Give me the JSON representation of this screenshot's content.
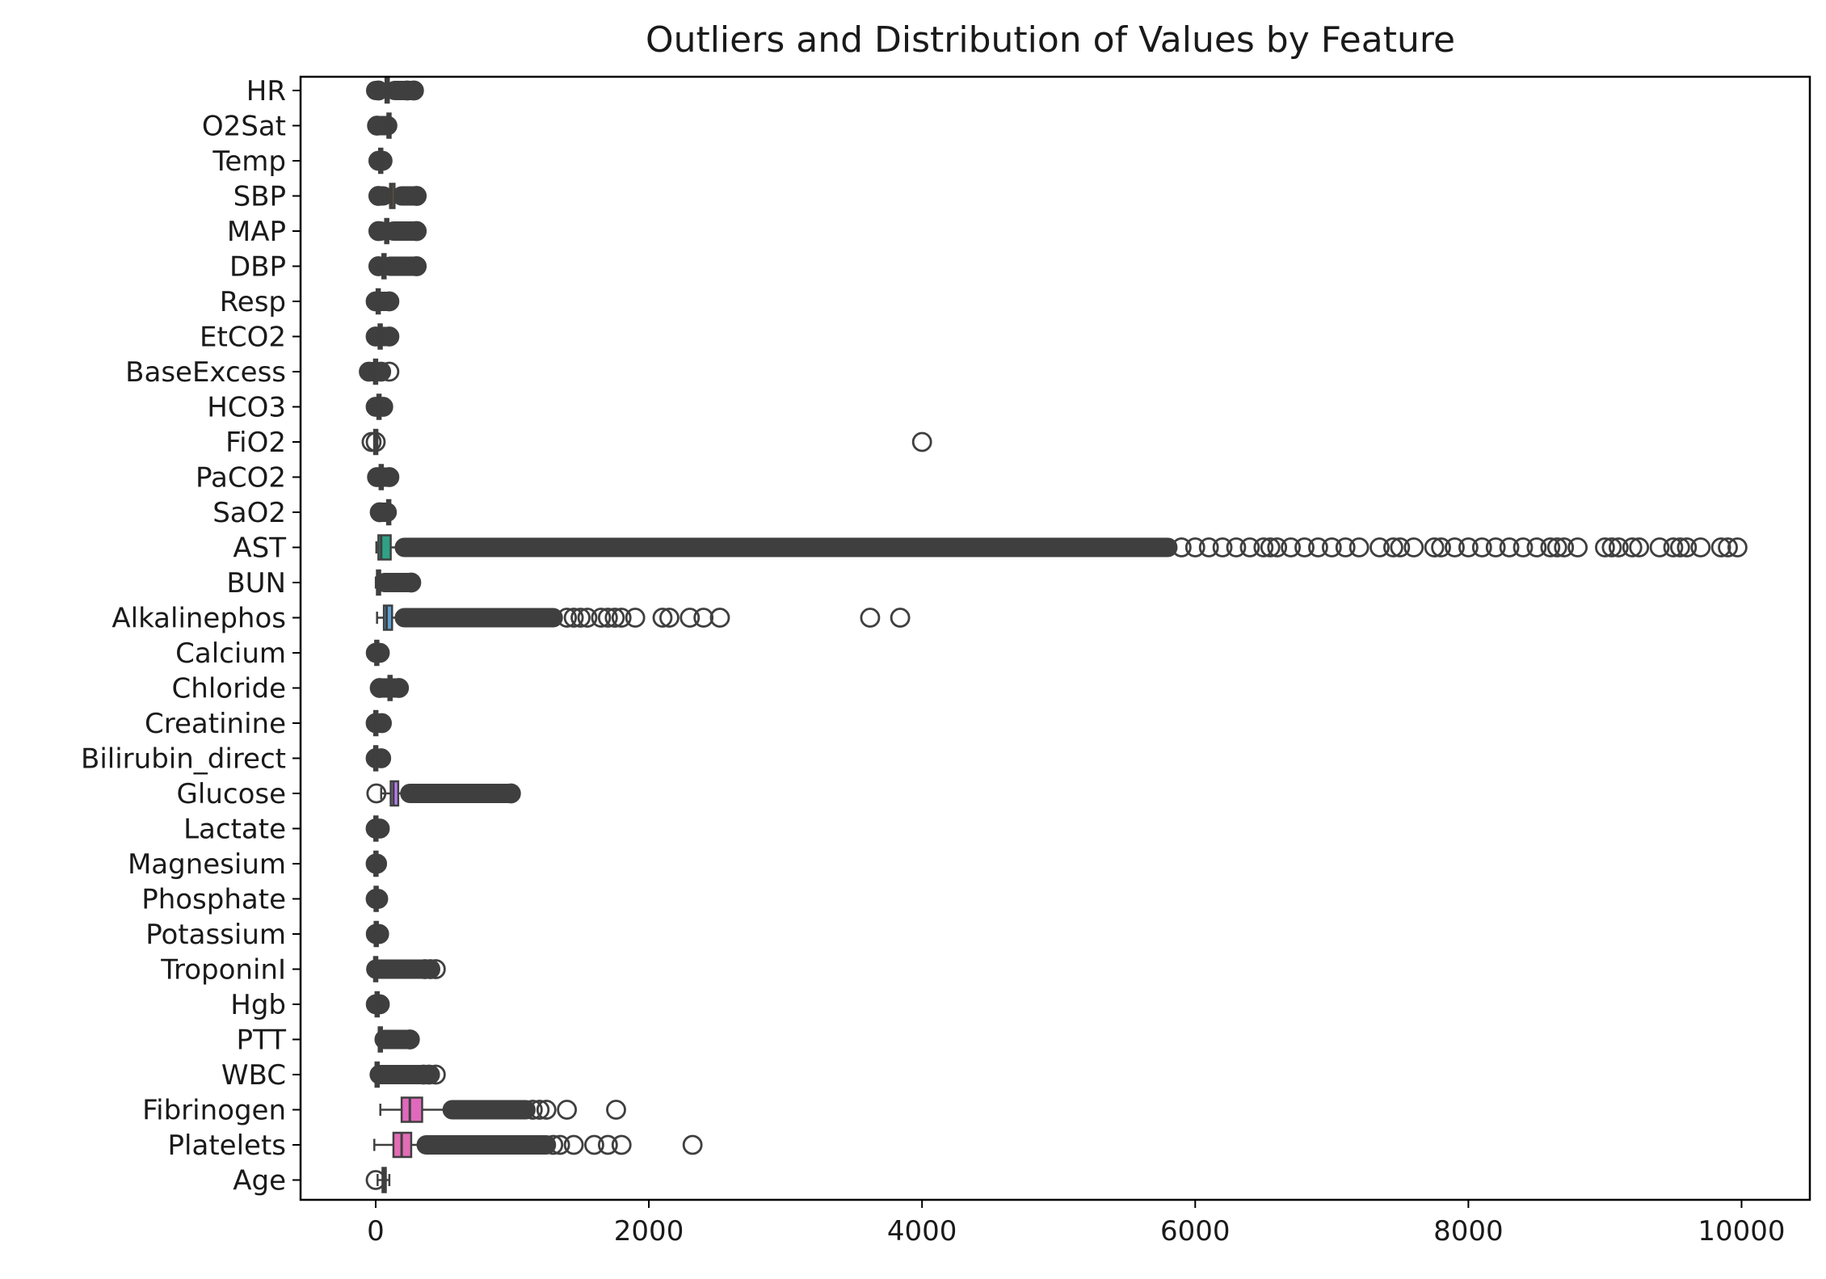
{
  "chart_data": {
    "type": "box",
    "orientation": "horizontal",
    "title": "Outliers and Distribution of Values by Feature",
    "xlabel": "",
    "ylabel": "",
    "xlim": [
      -550,
      10500
    ],
    "xticks": [
      0,
      2000,
      4000,
      6000,
      8000,
      10000
    ],
    "grid": false,
    "legend": "none",
    "box_line_color": "#3f3f3f",
    "categories": [
      "HR",
      "O2Sat",
      "Temp",
      "SBP",
      "MAP",
      "DBP",
      "Resp",
      "EtCO2",
      "BaseExcess",
      "HCO3",
      "FiO2",
      "PaCO2",
      "SaO2",
      "AST",
      "BUN",
      "Alkalinephos",
      "Calcium",
      "Chloride",
      "Creatinine",
      "Bilirubin_direct",
      "Glucose",
      "Lactate",
      "Magnesium",
      "Phosphate",
      "Potassium",
      "TroponinI",
      "Hgb",
      "PTT",
      "WBC",
      "Fibrinogen",
      "Platelets",
      "Age"
    ],
    "series": [
      {
        "category": "HR",
        "color": "#e8747a",
        "whislo": 30,
        "q1": 72,
        "median": 84,
        "q3": 96,
        "whishi": 132,
        "outlier_ranges": [
          [
            0,
            20
          ],
          [
            140,
            280
          ]
        ],
        "outliers": [
          20,
          230,
          280
        ]
      },
      {
        "category": "O2Sat",
        "color": "#e0825a",
        "whislo": 90,
        "q1": 96,
        "median": 98,
        "q3": 99,
        "whishi": 100,
        "outlier_ranges": [
          [
            10,
            88
          ]
        ],
        "outliers": [
          10
        ]
      },
      {
        "category": "Temp",
        "color": "#cf8e3a",
        "whislo": 35,
        "q1": 36.5,
        "median": 37,
        "q3": 37.5,
        "whishi": 39,
        "outlier_ranges": [
          [
            20,
            34
          ],
          [
            40,
            50
          ]
        ],
        "outliers": [
          20,
          50
        ]
      },
      {
        "category": "SBP",
        "color": "#bd9937",
        "whislo": 60,
        "q1": 105,
        "median": 120,
        "q3": 138,
        "whishi": 185,
        "outlier_ranges": [
          [
            20,
            55
          ],
          [
            190,
            300
          ]
        ],
        "outliers": [
          20,
          300
        ]
      },
      {
        "category": "MAP",
        "color": "#a7a236",
        "whislo": 40,
        "q1": 70,
        "median": 80,
        "q3": 92,
        "whishi": 125,
        "outlier_ranges": [
          [
            20,
            38
          ],
          [
            130,
            300
          ]
        ],
        "outliers": [
          20,
          300
        ]
      },
      {
        "category": "DBP",
        "color": "#8fa936",
        "whislo": 25,
        "q1": 52,
        "median": 60,
        "q3": 70,
        "whishi": 100,
        "outlier_ranges": [
          [
            20,
            24
          ],
          [
            105,
            300
          ]
        ],
        "outliers": [
          20,
          300
        ]
      },
      {
        "category": "Resp",
        "color": "#6cb036",
        "whislo": 5,
        "q1": 15,
        "median": 18,
        "q3": 22,
        "whishi": 32,
        "outlier_ranges": [
          [
            0,
            4
          ],
          [
            33,
            100
          ]
        ],
        "outliers": [
          0,
          100
        ]
      },
      {
        "category": "EtCO2",
        "color": "#3bb547",
        "whislo": 10,
        "q1": 28,
        "median": 33,
        "q3": 38,
        "whishi": 55,
        "outlier_ranges": [
          [
            0,
            9
          ],
          [
            56,
            100
          ]
        ],
        "outliers": [
          0,
          100
        ]
      },
      {
        "category": "BaseExcess",
        "color": "#36b06f",
        "whislo": -12,
        "q1": -3,
        "median": 0,
        "q3": 2,
        "whishi": 10,
        "outlier_ranges": [
          [
            -50,
            -13
          ],
          [
            11,
            40
          ]
        ],
        "outliers": [
          -50,
          40,
          100
        ]
      },
      {
        "category": "HCO3",
        "color": "#38ab8b",
        "whislo": 14,
        "q1": 22,
        "median": 24,
        "q3": 27,
        "whishi": 34,
        "outlier_ranges": [
          [
            0,
            13
          ],
          [
            35,
            55
          ]
        ],
        "outliers": [
          0,
          55
        ]
      },
      {
        "category": "FiO2",
        "color": "#39a89c",
        "whislo": 0.2,
        "q1": 0.4,
        "median": 0.5,
        "q3": 0.6,
        "whishi": 1,
        "outlier_ranges": [],
        "outliers": [
          -30,
          0,
          4000
        ]
      },
      {
        "category": "PaCO2",
        "color": "#3ba6ab",
        "whislo": 20,
        "q1": 35,
        "median": 40,
        "q3": 46,
        "whishi": 60,
        "outlier_ranges": [
          [
            10,
            19
          ],
          [
            61,
            100
          ]
        ],
        "outliers": [
          10,
          100
        ]
      },
      {
        "category": "SaO2",
        "color": "#3da4ba",
        "whislo": 85,
        "q1": 93,
        "median": 96,
        "q3": 98,
        "whishi": 100,
        "outlier_ranges": [
          [
            30,
            84
          ]
        ],
        "outliers": [
          30
        ]
      },
      {
        "category": "AST",
        "color": "#2fa286",
        "whislo": 5,
        "q1": 20,
        "median": 40,
        "q3": 110,
        "whishi": 200,
        "outlier_ranges": [
          [
            210,
            5800
          ]
        ],
        "outliers": [
          5900,
          6000,
          6100,
          6200,
          6300,
          6400,
          6500,
          6550,
          6600,
          6700,
          6800,
          6900,
          7000,
          7100,
          7200,
          7350,
          7450,
          7500,
          7600,
          7750,
          7800,
          7900,
          8000,
          8100,
          8200,
          8300,
          8400,
          8500,
          8600,
          8650,
          8700,
          8800,
          9000,
          9050,
          9100,
          9200,
          9250,
          9400,
          9500,
          9550,
          9600,
          9700,
          9850,
          9900,
          9970
        ]
      },
      {
        "category": "BUN",
        "color": "#3f9fd7",
        "whislo": 1,
        "q1": 12,
        "median": 18,
        "q3": 30,
        "whishi": 60,
        "outlier_ranges": [
          [
            65,
            260
          ]
        ],
        "outliers": [
          260
        ]
      },
      {
        "category": "Alkalinephos",
        "color": "#5ba0d5",
        "whislo": 10,
        "q1": 60,
        "median": 80,
        "q3": 120,
        "whishi": 200,
        "outlier_ranges": [
          [
            210,
            1300
          ]
        ],
        "outliers": [
          1400,
          1450,
          1500,
          1550,
          1650,
          1700,
          1750,
          1800,
          1900,
          2100,
          2150,
          2300,
          2400,
          2520,
          3620,
          3840
        ]
      },
      {
        "category": "Calcium",
        "color": "#6c93ea",
        "whislo": 6,
        "q1": 7.5,
        "median": 8.2,
        "q3": 8.8,
        "whishi": 10.5,
        "outlier_ranges": [
          [
            1,
            5
          ],
          [
            11,
            30
          ]
        ],
        "outliers": [
          1,
          30
        ]
      },
      {
        "category": "Chloride",
        "color": "#868ef0",
        "whislo": 90,
        "q1": 100,
        "median": 105,
        "q3": 110,
        "whishi": 120,
        "outlier_ranges": [
          [
            30,
            88
          ],
          [
            122,
            170
          ]
        ],
        "outliers": [
          30,
          170
        ]
      },
      {
        "category": "Creatinine",
        "color": "#9b89f2",
        "whislo": 0.1,
        "q1": 0.7,
        "median": 1,
        "q3": 1.5,
        "whishi": 3,
        "outlier_ranges": [
          [
            3.5,
            45
          ]
        ],
        "outliers": [
          0,
          45
        ]
      },
      {
        "category": "Bilirubin_direct",
        "color": "#ad84f0",
        "whislo": 0.01,
        "q1": 0.2,
        "median": 0.4,
        "q3": 1,
        "whishi": 2,
        "outlier_ranges": [
          [
            2.5,
            40
          ]
        ],
        "outliers": [
          0,
          40
        ]
      },
      {
        "category": "Glucose",
        "color": "#b97ef0",
        "whislo": 40,
        "q1": 110,
        "median": 130,
        "q3": 165,
        "whishi": 245,
        "outlier_ranges": [
          [
            250,
            980
          ]
        ],
        "outliers": [
          5,
          990
        ]
      },
      {
        "category": "Lactate",
        "color": "#c97ae6",
        "whislo": 0.3,
        "q1": 1,
        "median": 1.5,
        "q3": 2.5,
        "whishi": 4.5,
        "outlier_ranges": [
          [
            5,
            30
          ]
        ],
        "outliers": [
          0,
          30
        ]
      },
      {
        "category": "Magnesium",
        "color": "#d676dc",
        "whislo": 1.3,
        "q1": 1.8,
        "median": 2,
        "q3": 2.2,
        "whishi": 2.8,
        "outlier_ranges": [
          [
            0,
            1.2
          ],
          [
            3,
            10
          ]
        ],
        "outliers": [
          0,
          10
        ]
      },
      {
        "category": "Phosphate",
        "color": "#de6fcf",
        "whislo": 1.5,
        "q1": 2.8,
        "median": 3.4,
        "q3": 4,
        "whishi": 6,
        "outlier_ranges": [
          [
            0,
            1.4
          ],
          [
            6.5,
            18
          ]
        ],
        "outliers": [
          0,
          18
        ]
      },
      {
        "category": "Potassium",
        "color": "#e26ec1",
        "whislo": 2.8,
        "q1": 3.7,
        "median": 4,
        "q3": 4.4,
        "whishi": 5.5,
        "outlier_ranges": [
          [
            1,
            2.7
          ],
          [
            5.6,
            25
          ]
        ],
        "outliers": [
          1,
          25
        ]
      },
      {
        "category": "TroponinI",
        "color": "#e56eb3",
        "whislo": 0.01,
        "q1": 0.02,
        "median": 0.05,
        "q3": 0.2,
        "whishi": 0.5,
        "outlier_ranges": [
          [
            1,
            400
          ]
        ],
        "outliers": [
          360,
          400,
          440
        ]
      },
      {
        "category": "Hgb",
        "color": "#e770a6",
        "whislo": 7,
        "q1": 9.5,
        "median": 10.5,
        "q3": 12,
        "whishi": 16,
        "outlier_ranges": [
          [
            1,
            6
          ],
          [
            17,
            30
          ]
        ],
        "outliers": [
          1,
          30
        ]
      },
      {
        "category": "PTT",
        "color": "#e9729b",
        "whislo": 20,
        "q1": 28,
        "median": 32,
        "q3": 40,
        "whishi": 60,
        "outlier_ranges": [
          [
            62,
            250
          ]
        ],
        "outliers": [
          250
        ]
      },
      {
        "category": "WBC",
        "color": "#ea7490",
        "whislo": 0.5,
        "q1": 7,
        "median": 10,
        "q3": 14,
        "whishi": 25,
        "outlier_ranges": [
          [
            26,
            400
          ]
        ],
        "outliers": [
          350,
          390,
          440
        ]
      },
      {
        "category": "Fibrinogen",
        "color": "#e069bd",
        "whislo": 34,
        "q1": 190,
        "median": 250,
        "q3": 340,
        "whishi": 550,
        "outlier_ranges": [
          [
            560,
            1100
          ]
        ],
        "outliers": [
          1150,
          1200,
          1250,
          1400,
          1760
        ]
      },
      {
        "category": "Platelets",
        "color": "#e36cb6",
        "whislo": -10,
        "q1": 130,
        "median": 190,
        "q3": 260,
        "whishi": 360,
        "outlier_ranges": [
          [
            370,
            1250
          ]
        ],
        "outliers": [
          1300,
          1350,
          1450,
          1600,
          1700,
          1800,
          2320
        ]
      },
      {
        "category": "Age",
        "color": "#e9719b",
        "whislo": 14,
        "q1": 50,
        "median": 63,
        "q3": 74,
        "whishi": 100,
        "outlier_ranges": [],
        "outliers": [
          0
        ]
      }
    ]
  }
}
